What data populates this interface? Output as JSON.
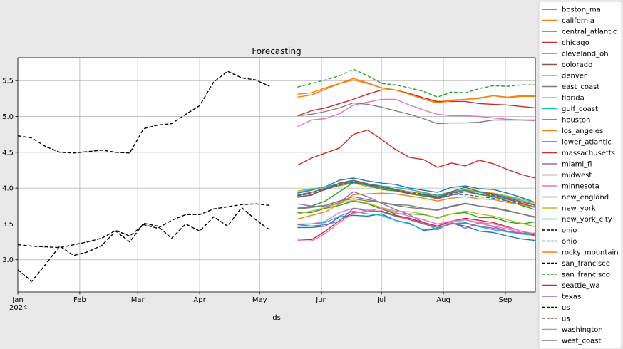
{
  "chart_data": {
    "type": "line",
    "title": "Forecasting",
    "xlabel": "ds",
    "ylabel": "",
    "ylim": [
      2.55,
      5.82
    ],
    "xlim": [
      "2024-01-01",
      "2024-09-16"
    ],
    "grid": true,
    "legend_placement": "right, outside plot",
    "x_ticks": [
      {
        "date": "2024-01-01",
        "label": "Jan",
        "sublabel": "2024"
      },
      {
        "date": "2024-02-01",
        "label": "Feb",
        "sublabel": ""
      },
      {
        "date": "2024-03-01",
        "label": "Mar",
        "sublabel": ""
      },
      {
        "date": "2024-04-01",
        "label": "Apr",
        "sublabel": ""
      },
      {
        "date": "2024-05-01",
        "label": "May",
        "sublabel": ""
      },
      {
        "date": "2024-06-01",
        "label": "Jun",
        "sublabel": ""
      },
      {
        "date": "2024-07-01",
        "label": "Jul",
        "sublabel": ""
      },
      {
        "date": "2024-08-01",
        "label": "Aug",
        "sublabel": ""
      },
      {
        "date": "2024-09-01",
        "label": "Sep",
        "sublabel": ""
      }
    ],
    "y_ticks": [
      3.0,
      3.5,
      4.0,
      4.5,
      5.0,
      5.5
    ],
    "forecast_x": [
      "2024-05-20",
      "2024-05-27",
      "2024-06-03",
      "2024-06-10",
      "2024-06-17",
      "2024-06-24",
      "2024-07-01",
      "2024-07-08",
      "2024-07-15",
      "2024-07-22",
      "2024-07-29",
      "2024-08-05",
      "2024-08-12",
      "2024-08-19",
      "2024-08-26",
      "2024-09-02",
      "2024-09-09",
      "2024-09-16"
    ],
    "history_x": [
      "2024-01-01",
      "2024-01-08",
      "2024-01-15",
      "2024-01-22",
      "2024-01-29",
      "2024-02-05",
      "2024-02-12",
      "2024-02-19",
      "2024-02-26",
      "2024-03-04",
      "2024-03-11",
      "2024-03-18",
      "2024-03-25",
      "2024-04-01",
      "2024-04-08",
      "2024-04-15",
      "2024-04-22",
      "2024-04-29",
      "2024-05-06",
      "2024-05-13"
    ],
    "series": [
      {
        "name": "boston_ma",
        "color": "#1f77b4",
        "style": "solid",
        "values": [
          3.93,
          3.97,
          4.02,
          4.11,
          4.14,
          4.1,
          4.07,
          4.05,
          4.0,
          3.97,
          3.94,
          4.01,
          4.03,
          3.99,
          3.98,
          3.93,
          3.87,
          3.8
        ]
      },
      {
        "name": "california",
        "color": "#ff7f0e",
        "style": "solid",
        "values": [
          5.31,
          5.33,
          5.4,
          5.46,
          5.51,
          5.46,
          5.4,
          5.37,
          5.32,
          5.26,
          5.2,
          5.23,
          5.24,
          5.26,
          5.29,
          5.27,
          5.29,
          5.29
        ]
      },
      {
        "name": "central_atlantic",
        "color": "#2ca02c",
        "style": "solid",
        "values": [
          3.66,
          3.66,
          3.72,
          3.76,
          3.82,
          3.78,
          3.71,
          3.64,
          3.64,
          3.63,
          3.59,
          3.64,
          3.66,
          3.59,
          3.59,
          3.53,
          3.5,
          3.53
        ]
      },
      {
        "name": "chicago",
        "color": "#d62728",
        "style": "solid",
        "values": [
          5.01,
          5.08,
          5.12,
          5.18,
          5.24,
          5.31,
          5.37,
          5.37,
          5.32,
          5.26,
          5.21,
          5.21,
          5.21,
          5.18,
          5.17,
          5.16,
          5.14,
          5.12
        ]
      },
      {
        "name": "cleveland_oh",
        "color": "#9467bd",
        "style": "solid",
        "values": [
          3.87,
          3.91,
          3.98,
          4.04,
          4.07,
          4.04,
          4.0,
          3.97,
          3.93,
          3.9,
          3.85,
          3.9,
          3.95,
          3.91,
          3.89,
          3.84,
          3.79,
          3.73
        ]
      },
      {
        "name": "colorado",
        "color": "#8c564b",
        "style": "solid",
        "values": [
          3.9,
          3.94,
          4.0,
          4.06,
          4.09,
          4.06,
          4.03,
          3.98,
          3.95,
          3.93,
          3.87,
          3.94,
          3.98,
          3.94,
          3.91,
          3.87,
          3.81,
          3.76
        ]
      },
      {
        "name": "denver",
        "color": "#e377c2",
        "style": "solid",
        "values": [
          4.86,
          4.95,
          4.97,
          5.04,
          5.16,
          5.2,
          5.24,
          5.24,
          5.16,
          5.09,
          5.03,
          5.01,
          5.01,
          5.0,
          4.98,
          4.96,
          4.95,
          4.94
        ]
      },
      {
        "name": "east_coast",
        "color": "#7f7f7f",
        "style": "solid",
        "values": [
          5.01,
          5.03,
          5.07,
          5.12,
          5.19,
          5.17,
          5.13,
          5.08,
          5.03,
          4.97,
          4.9,
          4.91,
          4.91,
          4.92,
          4.95,
          4.95,
          4.95,
          4.95
        ]
      },
      {
        "name": "florida",
        "color": "#bcbd22",
        "style": "solid",
        "values": [
          3.96,
          3.99,
          4.01,
          4.03,
          4.07,
          4.02,
          3.99,
          3.97,
          3.95,
          3.93,
          3.89,
          3.93,
          3.98,
          3.95,
          3.93,
          3.89,
          3.85,
          3.79
        ]
      },
      {
        "name": "gulf_coast",
        "color": "#17becf",
        "style": "solid",
        "values": [
          3.94,
          3.98,
          4.02,
          4.06,
          4.08,
          4.05,
          4.03,
          4.01,
          3.98,
          3.94,
          3.9,
          3.95,
          3.97,
          3.94,
          3.92,
          3.88,
          3.83,
          3.77
        ]
      },
      {
        "name": "houston",
        "color": "#1f77b4",
        "style": "solid",
        "values": [
          3.45,
          3.45,
          3.47,
          3.6,
          3.62,
          3.61,
          3.64,
          3.55,
          3.51,
          3.41,
          3.43,
          3.51,
          3.47,
          3.4,
          3.38,
          3.33,
          3.29,
          3.27
        ]
      },
      {
        "name": "los_angeles",
        "color": "#ff7f0e",
        "style": "solid",
        "values": [
          5.27,
          5.3,
          5.38,
          5.46,
          5.53,
          5.47,
          5.4,
          5.37,
          5.31,
          5.24,
          5.19,
          5.22,
          5.24,
          5.25,
          5.29,
          5.26,
          5.28,
          5.28
        ]
      },
      {
        "name": "lower_atlantic",
        "color": "#2ca02c",
        "style": "solid",
        "values": [
          3.72,
          3.75,
          3.82,
          3.95,
          4.08,
          4.04,
          3.98,
          3.96,
          3.92,
          3.89,
          3.86,
          3.93,
          3.97,
          3.91,
          3.88,
          3.82,
          3.76,
          3.7
        ]
      },
      {
        "name": "massachusetts",
        "color": "#d62728",
        "style": "solid",
        "values": [
          4.32,
          4.42,
          4.49,
          4.56,
          4.75,
          4.81,
          4.68,
          4.54,
          4.43,
          4.4,
          4.29,
          4.35,
          4.31,
          4.39,
          4.34,
          4.26,
          4.19,
          4.14
        ]
      },
      {
        "name": "miami_fl",
        "color": "#9467bd",
        "style": "solid",
        "values": [
          3.78,
          3.75,
          3.74,
          3.8,
          3.95,
          3.88,
          3.79,
          3.7,
          3.63,
          3.52,
          3.42,
          3.52,
          3.44,
          3.52,
          3.46,
          3.4,
          3.36,
          3.37
        ]
      },
      {
        "name": "midwest",
        "color": "#8c564b",
        "style": "solid",
        "values": [
          3.88,
          3.9,
          3.99,
          4.07,
          4.11,
          4.06,
          4.01,
          3.97,
          3.92,
          3.91,
          3.87,
          3.95,
          4.01,
          3.95,
          3.92,
          3.85,
          3.79,
          3.73
        ]
      },
      {
        "name": "minnesota",
        "color": "#e377c2",
        "style": "solid",
        "values": [
          3.5,
          3.5,
          3.54,
          3.66,
          3.72,
          3.7,
          3.67,
          3.62,
          3.58,
          3.5,
          3.47,
          3.52,
          3.56,
          3.51,
          3.47,
          3.43,
          3.38,
          3.33
        ]
      },
      {
        "name": "new_england",
        "color": "#7f7f7f",
        "style": "solid",
        "values": [
          3.72,
          3.74,
          3.76,
          3.82,
          3.88,
          3.84,
          3.8,
          3.77,
          3.76,
          3.72,
          3.7,
          3.75,
          3.79,
          3.75,
          3.73,
          3.69,
          3.64,
          3.59
        ]
      },
      {
        "name": "new_york",
        "color": "#bcbd22",
        "style": "solid",
        "values": [
          3.64,
          3.68,
          3.73,
          3.79,
          3.83,
          3.79,
          3.73,
          3.68,
          3.67,
          3.64,
          3.58,
          3.64,
          3.68,
          3.64,
          3.61,
          3.56,
          3.51,
          3.46
        ]
      },
      {
        "name": "new_york_city",
        "color": "#17becf",
        "style": "solid",
        "values": [
          3.49,
          3.5,
          3.52,
          3.61,
          3.68,
          3.64,
          3.62,
          3.55,
          3.5,
          3.42,
          3.44,
          3.5,
          3.52,
          3.46,
          3.42,
          3.39,
          3.36,
          3.34
        ]
      },
      {
        "name": "ohio",
        "color": "#000000",
        "style": "dashed",
        "values": [
          4.73,
          4.7,
          4.58,
          4.5,
          4.49,
          4.51,
          4.53,
          4.5,
          4.49,
          4.83,
          4.88,
          4.9,
          5.03,
          5.15,
          5.48,
          5.63,
          5.54,
          5.51,
          5.42
        ],
        "x_ref": "history_x_plus"
      },
      {
        "name": "ohio",
        "color": "#1f77b4",
        "style": "dashed",
        "values": [
          3.89,
          3.93,
          3.98,
          4.04,
          4.08,
          4.04,
          4.02,
          3.97,
          3.93,
          3.91,
          3.86,
          3.91,
          3.91,
          3.88,
          3.86,
          3.82,
          3.78,
          3.74
        ]
      },
      {
        "name": "rocky_mountain",
        "color": "#ff7f0e",
        "style": "solid",
        "values": [
          3.57,
          3.62,
          3.67,
          3.78,
          3.91,
          3.92,
          3.93,
          3.92,
          3.89,
          3.86,
          3.82,
          3.86,
          3.88,
          3.85,
          3.84,
          3.8,
          3.77,
          3.73
        ]
      },
      {
        "name": "san_francisco",
        "color": "#000000",
        "style": "dashed",
        "values": [
          3.21,
          3.19,
          3.18,
          3.17,
          3.21,
          3.25,
          3.3,
          3.41,
          3.33,
          3.49,
          3.44,
          3.55,
          3.63,
          3.63,
          3.71,
          3.74,
          3.77,
          3.78,
          3.76
        ],
        "x_ref": "history_x_plus"
      },
      {
        "name": "san_francisco",
        "color": "#2ca02c",
        "style": "dashed",
        "values": [
          5.41,
          5.46,
          5.51,
          5.57,
          5.66,
          5.57,
          5.46,
          5.44,
          5.4,
          5.35,
          5.27,
          5.34,
          5.33,
          5.39,
          5.43,
          5.42,
          5.44,
          5.44
        ]
      },
      {
        "name": "seattle_wa",
        "color": "#d62728",
        "style": "solid",
        "values": [
          3.29,
          3.28,
          3.4,
          3.55,
          3.66,
          3.67,
          3.68,
          3.62,
          3.58,
          3.52,
          3.47,
          3.54,
          3.58,
          3.55,
          3.52,
          3.46,
          3.4,
          3.34
        ]
      },
      {
        "name": "texas",
        "color": "#9467bd",
        "style": "solid",
        "values": [
          3.49,
          3.47,
          3.49,
          3.54,
          3.72,
          3.68,
          3.67,
          3.61,
          3.56,
          3.5,
          3.45,
          3.5,
          3.51,
          3.47,
          3.44,
          3.4,
          3.37,
          3.37
        ]
      },
      {
        "name": "us",
        "color": "#000000",
        "style": "dashed",
        "values": [
          2.86,
          2.7,
          2.94,
          3.19,
          3.06,
          3.11,
          3.2,
          3.4,
          3.25,
          3.51,
          3.47,
          3.3,
          3.5,
          3.4,
          3.6,
          3.47,
          3.73,
          3.56,
          3.42
        ],
        "x_ref": "history_x_plus"
      },
      {
        "name": "us",
        "color": "#8c564b",
        "style": "dashed",
        "values": [
          3.91,
          3.94,
          3.99,
          4.05,
          4.1,
          4.06,
          4.02,
          3.98,
          3.94,
          3.92,
          3.88,
          3.93,
          3.95,
          3.92,
          3.9,
          3.86,
          3.81,
          3.76
        ]
      },
      {
        "name": "washington",
        "color": "#e377c2",
        "style": "solid",
        "values": [
          3.27,
          3.26,
          3.37,
          3.52,
          3.65,
          3.68,
          3.72,
          3.66,
          3.61,
          3.56,
          3.5,
          3.54,
          3.56,
          3.52,
          3.5,
          3.45,
          3.4,
          3.36
        ]
      },
      {
        "name": "west_coast",
        "color": "#7f7f7f",
        "style": "solid",
        "values": [
          3.71,
          3.73,
          3.76,
          3.82,
          3.85,
          3.82,
          3.8,
          3.76,
          3.73,
          3.71,
          3.69,
          3.74,
          3.78,
          3.75,
          3.72,
          3.68,
          3.64,
          3.6
        ]
      }
    ]
  }
}
